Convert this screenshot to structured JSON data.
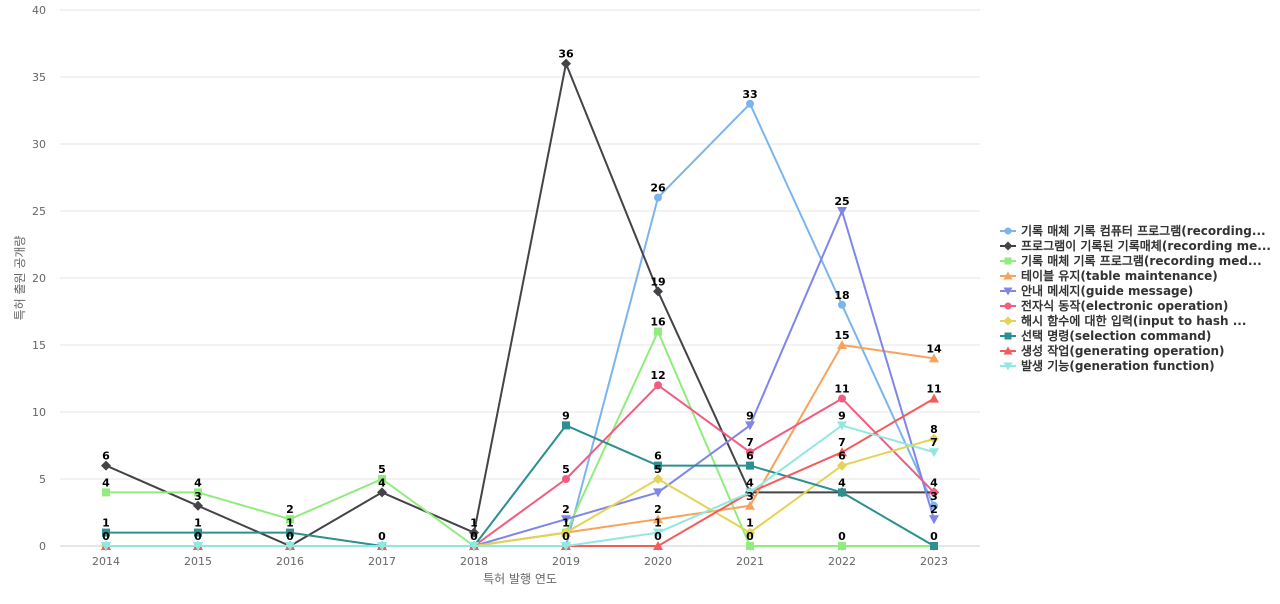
{
  "chart_data": {
    "type": "line",
    "title": "",
    "xlabel": "특허 발행 연도",
    "ylabel": "특허 출원 공개량",
    "categories": [
      "2014",
      "2015",
      "2016",
      "2017",
      "2018",
      "2019",
      "2020",
      "2021",
      "2022",
      "2023"
    ],
    "ylim": [
      0,
      40
    ],
    "yticks": [
      0,
      5,
      10,
      15,
      20,
      25,
      30,
      35,
      40
    ],
    "grid": true,
    "legend_position": "right",
    "series": [
      {
        "name": "기록 매체 기록 컴퓨터 프로그램(recording...",
        "color": "#7cb5ec",
        "marker": "circle",
        "values": [
          0,
          0,
          0,
          0,
          0,
          0,
          26,
          33,
          18,
          3
        ]
      },
      {
        "name": "프로그램이 기록된 기록매체(recording me...",
        "color": "#434348",
        "marker": "diamond",
        "values": [
          6,
          3,
          0,
          4,
          1,
          36,
          19,
          4,
          4,
          4
        ]
      },
      {
        "name": "기록 매체 기록 프로그램(recording med...",
        "color": "#90ed7d",
        "marker": "square",
        "values": [
          4,
          4,
          2,
          5,
          0,
          1,
          16,
          0,
          0,
          0
        ]
      },
      {
        "name": "테이블 유지(table maintenance)",
        "color": "#f7a35c",
        "marker": "triangle",
        "values": [
          0,
          0,
          0,
          0,
          0,
          1,
          2,
          3,
          15,
          14
        ]
      },
      {
        "name": "안내 메세지(guide message)",
        "color": "#8085e9",
        "marker": "triangle-down",
        "values": [
          0,
          0,
          0,
          0,
          0,
          2,
          4,
          9,
          25,
          2
        ]
      },
      {
        "name": "전자식 동작(electronic operation)",
        "color": "#f15c80",
        "marker": "circle",
        "values": [
          0,
          0,
          0,
          0,
          0,
          5,
          12,
          7,
          11,
          4
        ]
      },
      {
        "name": "해시 함수에 대한 입력(input to hash ...",
        "color": "#e4d354",
        "marker": "diamond",
        "values": [
          0,
          0,
          0,
          0,
          0,
          1,
          5,
          1,
          6,
          8
        ]
      },
      {
        "name": "선택 명령(selection command)",
        "color": "#2b908f",
        "marker": "square",
        "values": [
          1,
          1,
          1,
          0,
          0,
          9,
          6,
          6,
          4,
          0
        ]
      },
      {
        "name": "생성 작업(generating operation)",
        "color": "#f45b5b",
        "marker": "triangle",
        "values": [
          0,
          0,
          0,
          0,
          0,
          0,
          0,
          4,
          7,
          11
        ]
      },
      {
        "name": "발생 기능(generation function)",
        "color": "#91e8e1",
        "marker": "triangle-down",
        "values": [
          0,
          0,
          0,
          0,
          0,
          0,
          1,
          4,
          9,
          7
        ]
      }
    ],
    "data_labels": [
      {
        "cat": 0,
        "value": 6
      },
      {
        "cat": 0,
        "value": 4
      },
      {
        "cat": 0,
        "value": 1
      },
      {
        "cat": 0,
        "value": 0
      },
      {
        "cat": 1,
        "value": 4
      },
      {
        "cat": 1,
        "value": 3
      },
      {
        "cat": 1,
        "value": 1
      },
      {
        "cat": 1,
        "value": 0
      },
      {
        "cat": 2,
        "value": 2
      },
      {
        "cat": 2,
        "value": 1
      },
      {
        "cat": 2,
        "value": 0
      },
      {
        "cat": 3,
        "value": 5
      },
      {
        "cat": 3,
        "value": 4
      },
      {
        "cat": 3,
        "value": 0
      },
      {
        "cat": 4,
        "value": 1
      },
      {
        "cat": 4,
        "value": 0
      },
      {
        "cat": 5,
        "value": 36
      },
      {
        "cat": 5,
        "value": 9
      },
      {
        "cat": 5,
        "value": 5
      },
      {
        "cat": 5,
        "value": 2
      },
      {
        "cat": 5,
        "value": 1
      },
      {
        "cat": 5,
        "value": 0
      },
      {
        "cat": 6,
        "value": 26
      },
      {
        "cat": 6,
        "value": 19
      },
      {
        "cat": 6,
        "value": 16
      },
      {
        "cat": 6,
        "value": 12
      },
      {
        "cat": 6,
        "value": 6
      },
      {
        "cat": 6,
        "value": 5
      },
      {
        "cat": 6,
        "value": 2
      },
      {
        "cat": 6,
        "value": 1
      },
      {
        "cat": 6,
        "value": 0
      },
      {
        "cat": 7,
        "value": 33
      },
      {
        "cat": 7,
        "value": 9
      },
      {
        "cat": 7,
        "value": 7
      },
      {
        "cat": 7,
        "value": 6
      },
      {
        "cat": 7,
        "value": 4
      },
      {
        "cat": 7,
        "value": 3
      },
      {
        "cat": 7,
        "value": 1
      },
      {
        "cat": 7,
        "value": 0
      },
      {
        "cat": 8,
        "value": 25
      },
      {
        "cat": 8,
        "value": 18
      },
      {
        "cat": 8,
        "value": 15
      },
      {
        "cat": 8,
        "value": 11
      },
      {
        "cat": 8,
        "value": 9
      },
      {
        "cat": 8,
        "value": 7
      },
      {
        "cat": 8,
        "value": 6
      },
      {
        "cat": 8,
        "value": 4
      },
      {
        "cat": 8,
        "value": 0
      },
      {
        "cat": 9,
        "value": 14
      },
      {
        "cat": 9,
        "value": 11
      },
      {
        "cat": 9,
        "value": 8
      },
      {
        "cat": 9,
        "value": 7
      },
      {
        "cat": 9,
        "value": 4
      },
      {
        "cat": 9,
        "value": 3
      },
      {
        "cat": 9,
        "value": 2
      },
      {
        "cat": 9,
        "value": 0
      }
    ]
  }
}
